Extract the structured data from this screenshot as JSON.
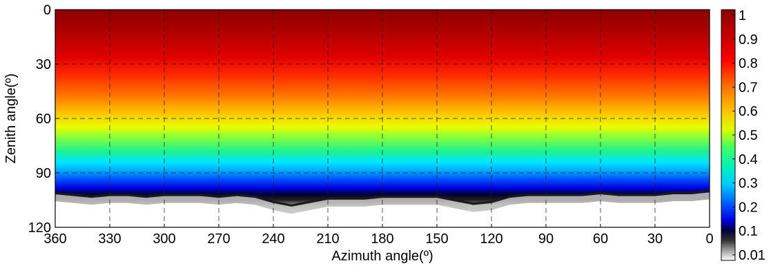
{
  "chart_data": {
    "type": "heatmap",
    "title": "",
    "xlabel": "Azimuth angle(º)",
    "ylabel": "Zenith angle(º)",
    "x_ticks": [
      360,
      330,
      300,
      270,
      240,
      210,
      180,
      150,
      120,
      90,
      60,
      30,
      0
    ],
    "y_ticks": [
      0,
      30,
      60,
      90,
      120
    ],
    "xlim": [
      360,
      0
    ],
    "ylim": [
      0,
      120
    ],
    "y_reversed": true,
    "grid": true,
    "colorbar": {
      "ticks": [
        "1",
        "0.9",
        "0.8",
        "0.7",
        "0.6",
        "0.5",
        "0.4",
        "0.3",
        "0.2",
        "0.1",
        "0.01"
      ],
      "range": [
        0.01,
        1
      ]
    },
    "horizon_zenith_by_azimuth": {
      "azimuth": [
        360,
        350,
        340,
        330,
        320,
        310,
        300,
        290,
        280,
        270,
        260,
        250,
        240,
        230,
        220,
        210,
        200,
        190,
        180,
        170,
        160,
        150,
        140,
        130,
        120,
        110,
        100,
        90,
        80,
        70,
        60,
        50,
        40,
        30,
        20,
        10,
        0
      ],
      "zenith": [
        101,
        102,
        103,
        102,
        102,
        103,
        102,
        102,
        102,
        103,
        102,
        103,
        106,
        108,
        106,
        104,
        104,
        104,
        103,
        103,
        103,
        103,
        105,
        107,
        106,
        103,
        102,
        102,
        102,
        102,
        101,
        102,
        102,
        102,
        101,
        101,
        100
      ]
    },
    "value_profile_by_zenith": {
      "zenith": [
        0,
        10,
        20,
        30,
        40,
        50,
        60,
        70,
        80,
        85,
        90,
        95,
        100,
        104,
        108,
        112,
        120
      ],
      "value": [
        1.0,
        0.98,
        0.94,
        0.88,
        0.82,
        0.76,
        0.68,
        0.57,
        0.46,
        0.4,
        0.32,
        0.24,
        0.14,
        0.08,
        0.04,
        0.02,
        0.01
      ]
    }
  }
}
